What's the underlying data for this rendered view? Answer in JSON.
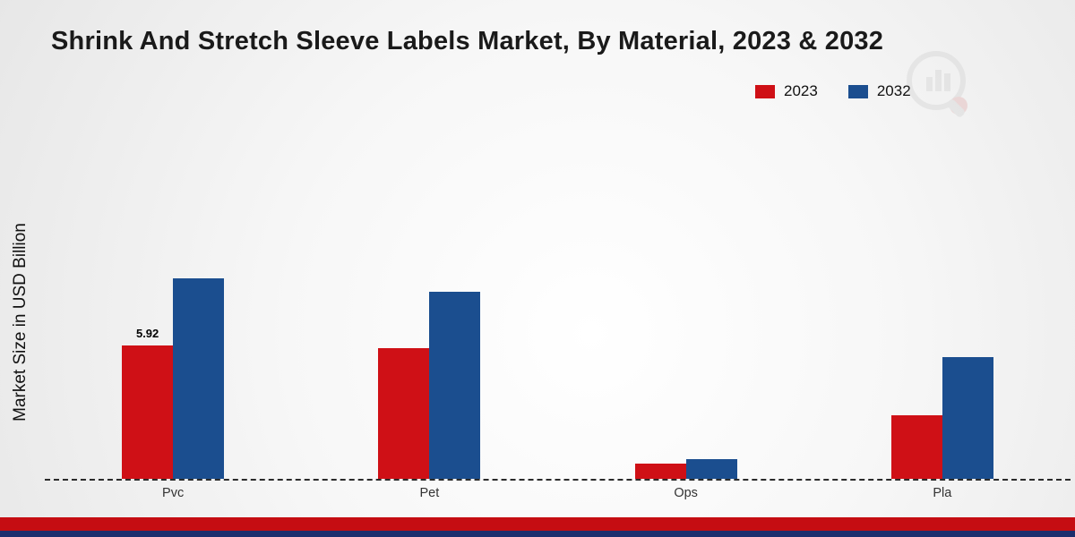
{
  "title": "Shrink And Stretch Sleeve Labels Market, By Material, 2023 & 2032",
  "ylabel": "Market Size in USD Billion",
  "legend": [
    {
      "label": "2023",
      "color": "#cf1016"
    },
    {
      "label": "2032",
      "color": "#1b4e8f"
    }
  ],
  "footer": {
    "red_band_color": "#c50d12",
    "blue_band_color": "#1b2e6d"
  },
  "chart_data": {
    "type": "bar",
    "title": "Shrink And Stretch Sleeve Labels Market, By Material, 2023 & 2032",
    "xlabel": "",
    "ylabel": "Market Size in USD Billion",
    "categories": [
      "Pvc",
      "Pet",
      "Ops",
      "Pla"
    ],
    "series": [
      {
        "name": "2023",
        "color": "#cf1016",
        "values": [
          5.92,
          5.8,
          0.68,
          2.8
        ]
      },
      {
        "name": "2032",
        "color": "#1b4e8f",
        "values": [
          8.9,
          8.3,
          0.88,
          5.4
        ]
      }
    ],
    "annotations": [
      {
        "category": "Pvc",
        "series": "2023",
        "text": "5.92"
      }
    ],
    "ylim": [
      0,
      10
    ],
    "grid": false,
    "legend_position": "top-right",
    "baseline_style": "dashed"
  }
}
